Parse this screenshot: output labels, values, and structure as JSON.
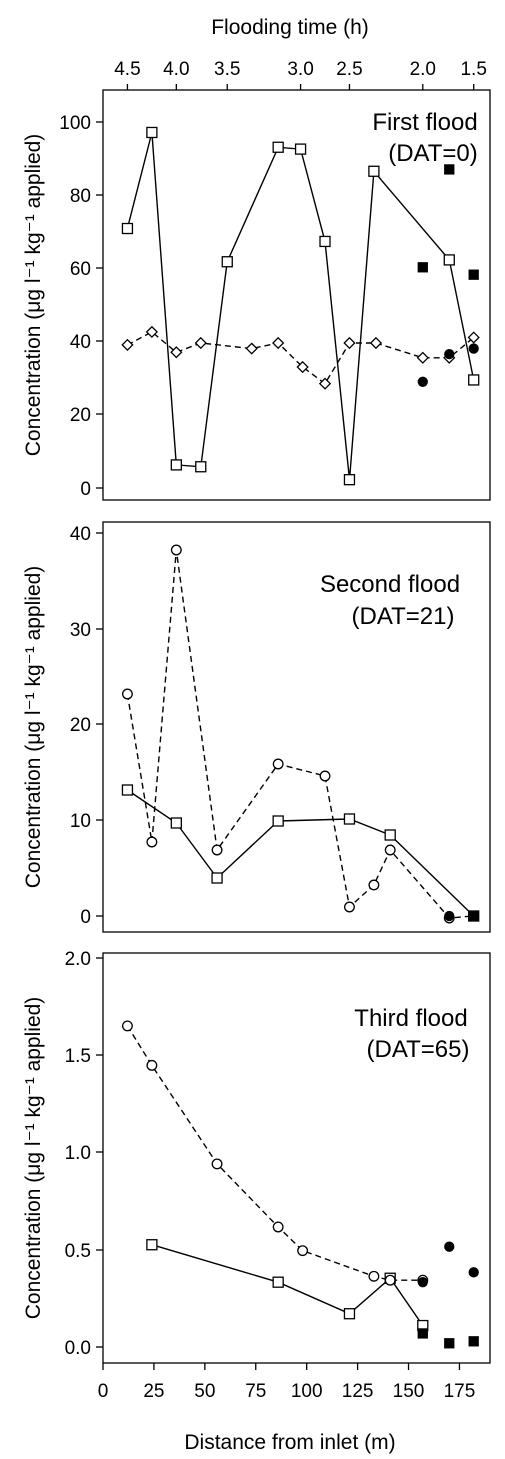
{
  "top_axis": {
    "title": "Flooding time (h)",
    "ticks": [
      {
        "label": "4.5",
        "x": 12
      },
      {
        "label": "4.0",
        "x": 36
      },
      {
        "label": "3.5",
        "x": 61
      },
      {
        "label": "3.0",
        "x": 97
      },
      {
        "label": "2.5",
        "x": 121
      },
      {
        "label": "2.0",
        "x": 157
      },
      {
        "label": "1.5",
        "x": 182
      }
    ]
  },
  "x_axis": {
    "title": "Distance from inlet (m)",
    "min": 0,
    "max": 190,
    "ticks": [
      {
        "label": "0",
        "v": 0
      },
      {
        "label": "25",
        "v": 25
      },
      {
        "label": "50",
        "v": 50
      },
      {
        "label": "75",
        "v": 75
      },
      {
        "label": "100",
        "v": 100
      },
      {
        "label": "125",
        "v": 125
      },
      {
        "label": "150",
        "v": 150
      },
      {
        "label": "175",
        "v": 175
      }
    ]
  },
  "chart_data": [
    {
      "type": "line",
      "title": "First flood",
      "subtitle": "(DAT=0)",
      "ylabel": "Concentration (μg l⁻¹ kg⁻¹ applied)",
      "xlabel": "Distance from inlet (m)",
      "xlim": [
        0,
        190
      ],
      "ylim": [
        -3,
        108
      ],
      "yticks": [
        "0",
        "20",
        "40",
        "60",
        "80",
        "100"
      ],
      "grid": false,
      "series": [
        {
          "marker": "square-open",
          "line": "solid",
          "points": [
            [
              12,
              70.5
            ],
            [
              24,
              96.5
            ],
            [
              36,
              6.5
            ],
            [
              48,
              6
            ],
            [
              61,
              61.5
            ],
            [
              86,
              92.5
            ],
            [
              97,
              92
            ],
            [
              109,
              67
            ],
            [
              121,
              2.5
            ],
            [
              133,
              86
            ],
            [
              170,
              62
            ],
            [
              182,
              29.5
            ]
          ]
        },
        {
          "marker": "diamond-open",
          "line": "dashed",
          "points": [
            [
              12,
              39
            ],
            [
              24,
              42.5
            ],
            [
              36,
              37
            ],
            [
              48,
              39.5
            ],
            [
              73,
              38
            ],
            [
              86,
              39.5
            ],
            [
              98,
              33
            ],
            [
              109,
              28.5
            ],
            [
              121,
              39.5
            ],
            [
              134,
              39.5
            ],
            [
              157,
              35.5
            ],
            [
              170,
              35.5
            ],
            [
              182,
              41
            ]
          ]
        },
        {
          "marker": "square-filled",
          "line": "none",
          "points": [
            [
              157,
              60
            ],
            [
              170,
              86.5
            ],
            [
              182,
              58
            ]
          ]
        },
        {
          "marker": "circle-filled",
          "line": "none",
          "points": [
            [
              157,
              29
            ],
            [
              170,
              36.5
            ],
            [
              182,
              38
            ]
          ]
        }
      ]
    },
    {
      "type": "line",
      "title": "Second flood",
      "subtitle": "(DAT=21)",
      "ylabel": "Concentration (μg l⁻¹ kg⁻¹ applied)",
      "xlabel": "Distance from inlet (m)",
      "xlim": [
        0,
        190
      ],
      "ylim": [
        -1,
        40
      ],
      "yticks": [
        "0",
        "10",
        "20",
        "30",
        "40"
      ],
      "grid": false,
      "series": [
        {
          "marker": "square-open",
          "line": "solid",
          "points": [
            [
              12,
              13.2
            ],
            [
              36,
              9.9
            ],
            [
              56,
              4.4
            ],
            [
              86,
              10.1
            ],
            [
              121,
              10.3
            ],
            [
              141,
              8.7
            ],
            [
              182,
              0.6
            ]
          ]
        },
        {
          "marker": "circle-open",
          "line": "dashed",
          "points": [
            [
              12,
              22.8
            ],
            [
              24,
              8
            ],
            [
              36,
              37.2
            ],
            [
              56,
              7.2
            ],
            [
              86,
              15.8
            ],
            [
              109,
              14.6
            ],
            [
              121,
              1.5
            ],
            [
              133,
              3.7
            ],
            [
              141,
              7.2
            ],
            [
              170,
              0.4
            ],
            [
              182,
              0.6
            ]
          ]
        },
        {
          "marker": "square-filled",
          "line": "none",
          "points": [
            [
              182,
              0.6
            ]
          ]
        },
        {
          "marker": "circle-filled",
          "line": "none",
          "points": [
            [
              170,
              0.6
            ]
          ]
        }
      ]
    },
    {
      "type": "line",
      "title": "Third flood",
      "subtitle": "(DAT=65)",
      "ylabel": "Concentration (μg l⁻¹ kg⁻¹ applied)",
      "xlabel": "Distance from inlet (m)",
      "xlim": [
        0,
        190
      ],
      "ylim": [
        -0.08,
        2.0
      ],
      "yticks": [
        "0.0",
        "0.5",
        "1.0",
        "1.5",
        "2.0"
      ],
      "grid": false,
      "series": [
        {
          "marker": "square-open",
          "line": "solid",
          "points": [
            [
              24,
              0.52
            ],
            [
              86,
              0.33
            ],
            [
              121,
              0.17
            ],
            [
              141,
              0.35
            ],
            [
              157,
              0.11
            ]
          ]
        },
        {
          "marker": "circle-open",
          "line": "dashed",
          "points": [
            [
              12,
              1.63
            ],
            [
              24,
              1.43
            ],
            [
              56,
              0.93
            ],
            [
              86,
              0.61
            ],
            [
              98,
              0.49
            ],
            [
              133,
              0.36
            ],
            [
              141,
              0.34
            ],
            [
              157,
              0.34
            ]
          ]
        },
        {
          "marker": "square-filled",
          "line": "none",
          "points": [
            [
              157,
              0.07
            ],
            [
              170,
              0.02
            ],
            [
              182,
              0.03
            ]
          ]
        },
        {
          "marker": "circle-filled",
          "line": "none",
          "points": [
            [
              157,
              0.33
            ],
            [
              170,
              0.51
            ],
            [
              182,
              0.38
            ]
          ]
        }
      ]
    }
  ]
}
